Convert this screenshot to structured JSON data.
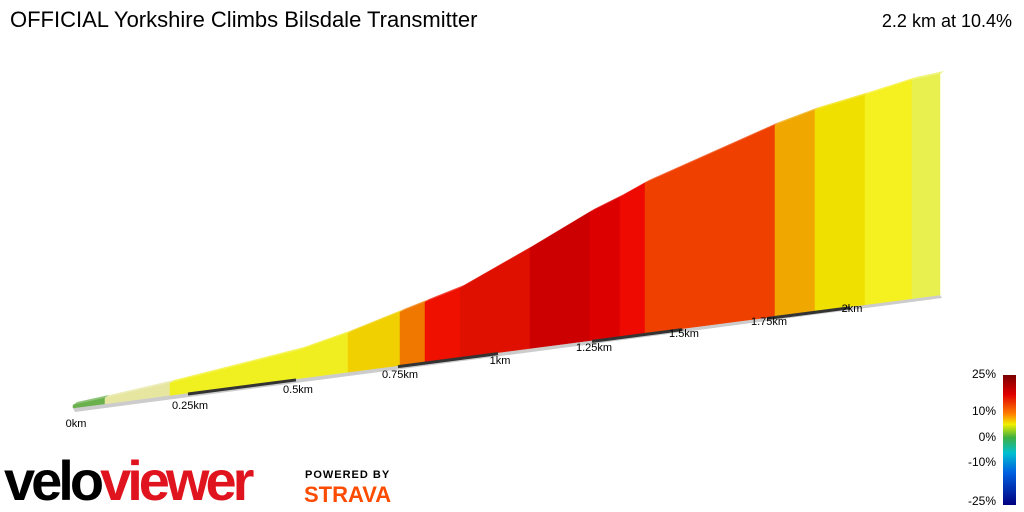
{
  "header": {
    "title": "OFFICIAL Yorkshire Climbs Bilsdale Transmitter",
    "summary": "2.2 km at 10.4%"
  },
  "distance_labels": [
    "0km",
    "0.25km",
    "0.5km",
    "0.75km",
    "1km",
    "1.25km",
    "1.5km",
    "1.75km",
    "2km"
  ],
  "legend": {
    "labels": [
      "25%",
      "10%",
      "0%",
      "-10%",
      "-25%"
    ]
  },
  "branding": {
    "logo_velo": "velo",
    "logo_viewer": "viewer",
    "powered_by": "POWERED BY",
    "partner": "STRAVA"
  }
}
